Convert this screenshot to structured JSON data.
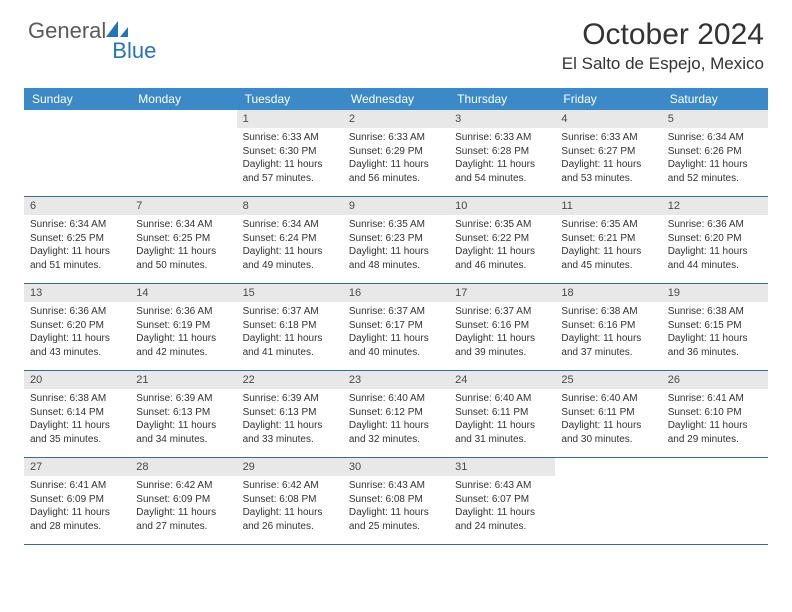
{
  "logo": {
    "part1": "General",
    "part2": "Blue"
  },
  "title": "October 2024",
  "location": "El Salto de Espejo, Mexico",
  "dayHeaders": [
    "Sunday",
    "Monday",
    "Tuesday",
    "Wednesday",
    "Thursday",
    "Friday",
    "Saturday"
  ],
  "colors": {
    "headerBar": "#3b89c7",
    "dayNumberBg": "#e8e8e8",
    "rowBorder": "#3b6a93",
    "logoBlue": "#2773b8",
    "logoGray": "#5a5a5a",
    "textDark": "#333333"
  },
  "layout": {
    "columns": 7,
    "firstDayOffset": 2,
    "cellFontSize": 10,
    "headerFontSize": 12,
    "titleFontSize": 30,
    "locationFontSize": 17
  },
  "days": [
    {
      "n": "1",
      "sr": "6:33 AM",
      "ss": "6:30 PM",
      "dl": "11 hours and 57 minutes."
    },
    {
      "n": "2",
      "sr": "6:33 AM",
      "ss": "6:29 PM",
      "dl": "11 hours and 56 minutes."
    },
    {
      "n": "3",
      "sr": "6:33 AM",
      "ss": "6:28 PM",
      "dl": "11 hours and 54 minutes."
    },
    {
      "n": "4",
      "sr": "6:33 AM",
      "ss": "6:27 PM",
      "dl": "11 hours and 53 minutes."
    },
    {
      "n": "5",
      "sr": "6:34 AM",
      "ss": "6:26 PM",
      "dl": "11 hours and 52 minutes."
    },
    {
      "n": "6",
      "sr": "6:34 AM",
      "ss": "6:25 PM",
      "dl": "11 hours and 51 minutes."
    },
    {
      "n": "7",
      "sr": "6:34 AM",
      "ss": "6:25 PM",
      "dl": "11 hours and 50 minutes."
    },
    {
      "n": "8",
      "sr": "6:34 AM",
      "ss": "6:24 PM",
      "dl": "11 hours and 49 minutes."
    },
    {
      "n": "9",
      "sr": "6:35 AM",
      "ss": "6:23 PM",
      "dl": "11 hours and 48 minutes."
    },
    {
      "n": "10",
      "sr": "6:35 AM",
      "ss": "6:22 PM",
      "dl": "11 hours and 46 minutes."
    },
    {
      "n": "11",
      "sr": "6:35 AM",
      "ss": "6:21 PM",
      "dl": "11 hours and 45 minutes."
    },
    {
      "n": "12",
      "sr": "6:36 AM",
      "ss": "6:20 PM",
      "dl": "11 hours and 44 minutes."
    },
    {
      "n": "13",
      "sr": "6:36 AM",
      "ss": "6:20 PM",
      "dl": "11 hours and 43 minutes."
    },
    {
      "n": "14",
      "sr": "6:36 AM",
      "ss": "6:19 PM",
      "dl": "11 hours and 42 minutes."
    },
    {
      "n": "15",
      "sr": "6:37 AM",
      "ss": "6:18 PM",
      "dl": "11 hours and 41 minutes."
    },
    {
      "n": "16",
      "sr": "6:37 AM",
      "ss": "6:17 PM",
      "dl": "11 hours and 40 minutes."
    },
    {
      "n": "17",
      "sr": "6:37 AM",
      "ss": "6:16 PM",
      "dl": "11 hours and 39 minutes."
    },
    {
      "n": "18",
      "sr": "6:38 AM",
      "ss": "6:16 PM",
      "dl": "11 hours and 37 minutes."
    },
    {
      "n": "19",
      "sr": "6:38 AM",
      "ss": "6:15 PM",
      "dl": "11 hours and 36 minutes."
    },
    {
      "n": "20",
      "sr": "6:38 AM",
      "ss": "6:14 PM",
      "dl": "11 hours and 35 minutes."
    },
    {
      "n": "21",
      "sr": "6:39 AM",
      "ss": "6:13 PM",
      "dl": "11 hours and 34 minutes."
    },
    {
      "n": "22",
      "sr": "6:39 AM",
      "ss": "6:13 PM",
      "dl": "11 hours and 33 minutes."
    },
    {
      "n": "23",
      "sr": "6:40 AM",
      "ss": "6:12 PM",
      "dl": "11 hours and 32 minutes."
    },
    {
      "n": "24",
      "sr": "6:40 AM",
      "ss": "6:11 PM",
      "dl": "11 hours and 31 minutes."
    },
    {
      "n": "25",
      "sr": "6:40 AM",
      "ss": "6:11 PM",
      "dl": "11 hours and 30 minutes."
    },
    {
      "n": "26",
      "sr": "6:41 AM",
      "ss": "6:10 PM",
      "dl": "11 hours and 29 minutes."
    },
    {
      "n": "27",
      "sr": "6:41 AM",
      "ss": "6:09 PM",
      "dl": "11 hours and 28 minutes."
    },
    {
      "n": "28",
      "sr": "6:42 AM",
      "ss": "6:09 PM",
      "dl": "11 hours and 27 minutes."
    },
    {
      "n": "29",
      "sr": "6:42 AM",
      "ss": "6:08 PM",
      "dl": "11 hours and 26 minutes."
    },
    {
      "n": "30",
      "sr": "6:43 AM",
      "ss": "6:08 PM",
      "dl": "11 hours and 25 minutes."
    },
    {
      "n": "31",
      "sr": "6:43 AM",
      "ss": "6:07 PM",
      "dl": "11 hours and 24 minutes."
    }
  ],
  "labels": {
    "sunrise": "Sunrise:",
    "sunset": "Sunset:",
    "daylight": "Daylight:"
  }
}
